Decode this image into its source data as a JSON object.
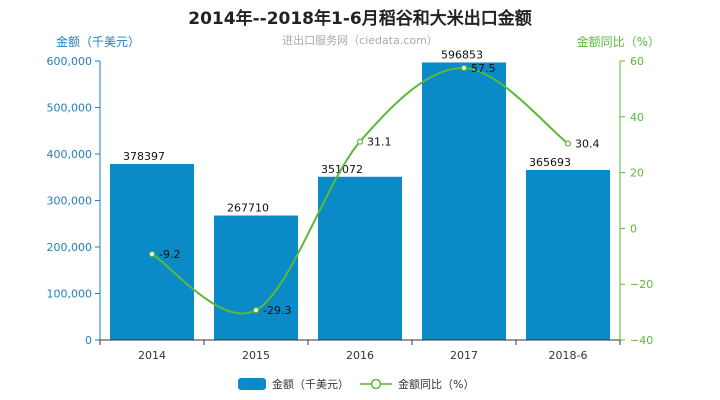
{
  "chart_data": {
    "type": "bar",
    "title": "2014年--2018年1-6月稻谷和大米出口金额",
    "subtitle": "进出口服务网（ciedata.com）",
    "ylabel_left": "金额（千美元）",
    "ylabel_right": "金额同比（%）",
    "categories": [
      "2014",
      "2015",
      "2016",
      "2017",
      "2018-6"
    ],
    "left_axis": {
      "min": 0,
      "max": 600000,
      "ticks": [
        0,
        100000,
        200000,
        300000,
        400000,
        500000,
        600000
      ],
      "tick_labels": [
        "0",
        "100,000",
        "200,000",
        "300,000",
        "400,000",
        "500,000",
        "600,000"
      ]
    },
    "right_axis": {
      "min": -40,
      "max": 60,
      "ticks": [
        -40,
        -20,
        0,
        20,
        40,
        60
      ],
      "tick_labels": [
        "−40",
        "−20",
        "0",
        "20",
        "40",
        "60"
      ]
    },
    "series": [
      {
        "name": "金额（千美元）",
        "type": "bar",
        "axis": "left",
        "values": [
          378397,
          267710,
          351072,
          596853,
          365693
        ],
        "labels": [
          "378397",
          "267710",
          "351072",
          "596853",
          "365693"
        ],
        "color": "#0a8ac6"
      },
      {
        "name": "金额同比（%）",
        "type": "line",
        "axis": "right",
        "values": [
          -9.2,
          -29.3,
          31.1,
          57.5,
          30.4
        ],
        "labels": [
          "-9.2",
          "-29.3",
          "31.1",
          "57.5",
          "30.4"
        ],
        "color": "#5cb83a"
      }
    ],
    "legend_position": "bottom-center",
    "grid": false
  },
  "colors": {
    "left_axis": "#1f7fbf",
    "right_axis": "#5cb83a",
    "subtitle": "#aaaaaa",
    "title": "#222222"
  }
}
